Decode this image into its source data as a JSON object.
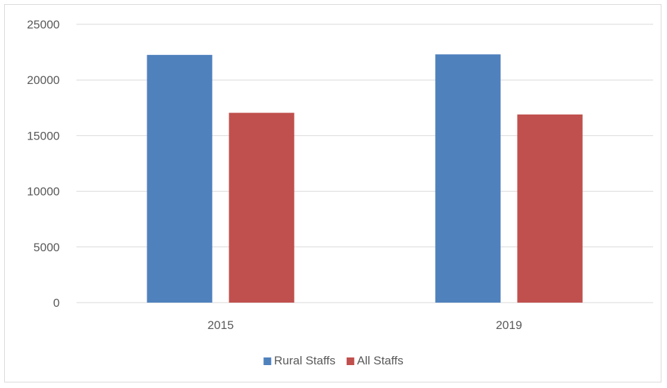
{
  "chart_data": {
    "type": "bar",
    "categories": [
      "2015",
      "2019"
    ],
    "series": [
      {
        "name": "Rural Staffs",
        "values": [
          22250,
          22300
        ],
        "color": "#4f81bd"
      },
      {
        "name": "All Staffs",
        "values": [
          17050,
          16900
        ],
        "color": "#c0504d"
      }
    ],
    "ylim": [
      0,
      25000
    ],
    "yticks": [
      "0",
      "5000",
      "10000",
      "15000",
      "20000",
      "25000"
    ],
    "grid": true,
    "legend": "bottom"
  }
}
